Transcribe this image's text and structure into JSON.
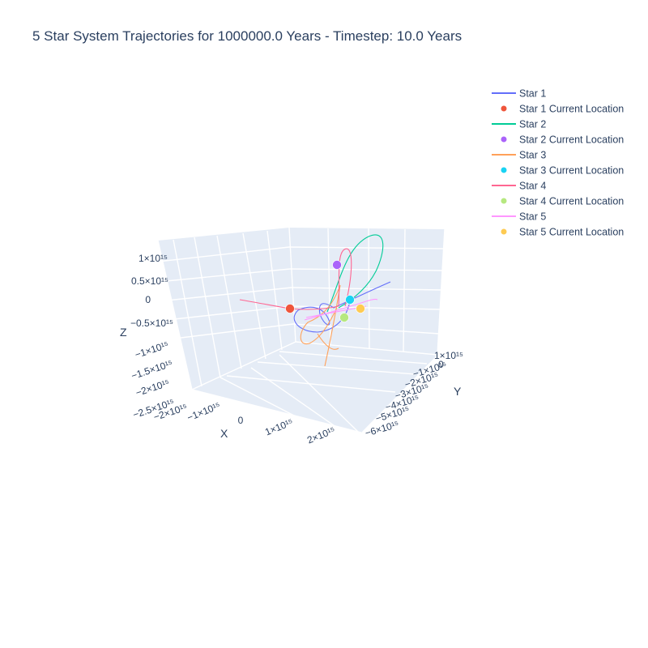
{
  "chart_data": {
    "type": "scatter3d",
    "title": "5 Star System Trajectories for 1000000.0 Years - Timestep: 10.0 Years",
    "axes": {
      "x": {
        "label": "X",
        "ticks": [
          "−1×10¹⁵",
          "0",
          "1×10¹⁵",
          "2×10¹⁵"
        ],
        "range": [
          -2000000000000000.0,
          2500000000000000.0
        ]
      },
      "y": {
        "label": "Y",
        "ticks": [
          "1×10¹⁵",
          "0",
          "−1×10¹⁵",
          "−2×10¹⁵",
          "−3×10¹⁵",
          "−4×10¹⁵",
          "−5×10¹⁵",
          "−6×10¹⁵"
        ],
        "range": [
          1000000000000000.0,
          -6500000000000000.0
        ]
      },
      "z": {
        "label": "Z",
        "ticks": [
          "1×10¹⁵",
          "0.5×10¹⁵",
          "0",
          "−0.5×10¹⁵",
          "−1×10¹⁵",
          "−1.5×10¹⁵",
          "−2×10¹⁵",
          "−2.5×10¹⁵",
          "−2×10¹⁵"
        ],
        "range": [
          -2500000000000000.0,
          1200000000000000.0
        ]
      }
    },
    "grid": true,
    "legend_placement": "top-right",
    "legend": [
      {
        "label": "Star 1",
        "kind": "line",
        "color": "#636efa"
      },
      {
        "label": "Star 1 Current Location",
        "kind": "marker",
        "color": "#EF553B"
      },
      {
        "label": "Star 2",
        "kind": "line",
        "color": "#00cc96"
      },
      {
        "label": "Star 2 Current Location",
        "kind": "marker",
        "color": "#ab63fa"
      },
      {
        "label": "Star 3",
        "kind": "line",
        "color": "#FFA15A"
      },
      {
        "label": "Star 3 Current Location",
        "kind": "marker",
        "color": "#19d3f3"
      },
      {
        "label": "Star 4",
        "kind": "line",
        "color": "#FF6692"
      },
      {
        "label": "Star 4 Current Location",
        "kind": "marker",
        "color": "#B6E880"
      },
      {
        "label": "Star 5",
        "kind": "line",
        "color": "#FF97FF"
      },
      {
        "label": "Star 5 Current Location",
        "kind": "marker",
        "color": "#FECB52"
      }
    ]
  }
}
